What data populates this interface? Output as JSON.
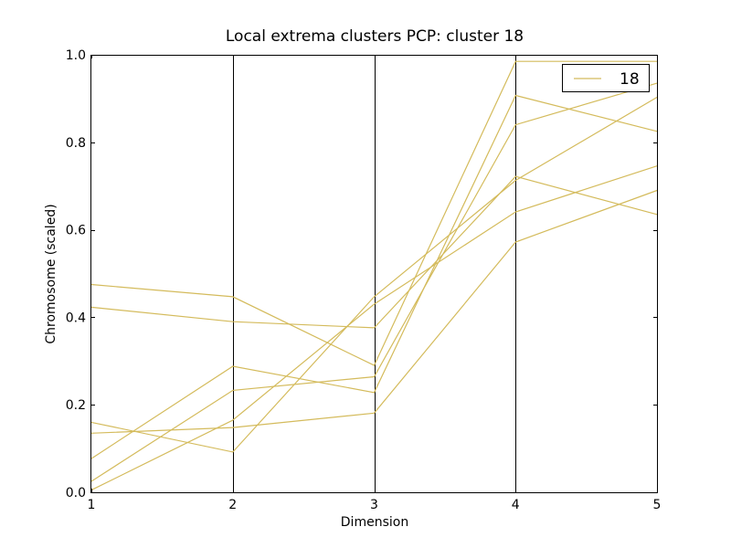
{
  "chart_data": {
    "type": "line",
    "title": "Local extrema clusters PCP: cluster 18",
    "xlabel": "Dimension",
    "ylabel": "Chromosome (scaled)",
    "x": [
      1,
      2,
      3,
      4,
      5
    ],
    "xlim": [
      1,
      5
    ],
    "ylim": [
      0.0,
      1.0
    ],
    "xticks": [
      "1",
      "2",
      "3",
      "4",
      "5"
    ],
    "yticks": [
      "0.0",
      "0.2",
      "0.4",
      "0.6",
      "0.8",
      "1.0"
    ],
    "vertical_axes_at": [
      2,
      3,
      4
    ],
    "line_color": "#d4bb5c",
    "legend": {
      "position": "top-right",
      "entries": [
        "18"
      ]
    },
    "series": [
      {
        "values": [
          0.475,
          0.447,
          0.29,
          0.985,
          0.985
        ]
      },
      {
        "values": [
          0.423,
          0.39,
          0.376,
          0.722,
          0.635
        ]
      },
      {
        "values": [
          0.16,
          0.092,
          0.447,
          0.713,
          0.903
        ]
      },
      {
        "values": [
          0.077,
          0.288,
          0.228,
          0.907,
          0.825
        ]
      },
      {
        "values": [
          0.025,
          0.233,
          0.264,
          0.84,
          0.935
        ]
      },
      {
        "values": [
          0.005,
          0.165,
          0.43,
          0.641,
          0.746
        ]
      },
      {
        "values": [
          0.135,
          0.148,
          0.181,
          0.572,
          0.69
        ]
      }
    ]
  }
}
